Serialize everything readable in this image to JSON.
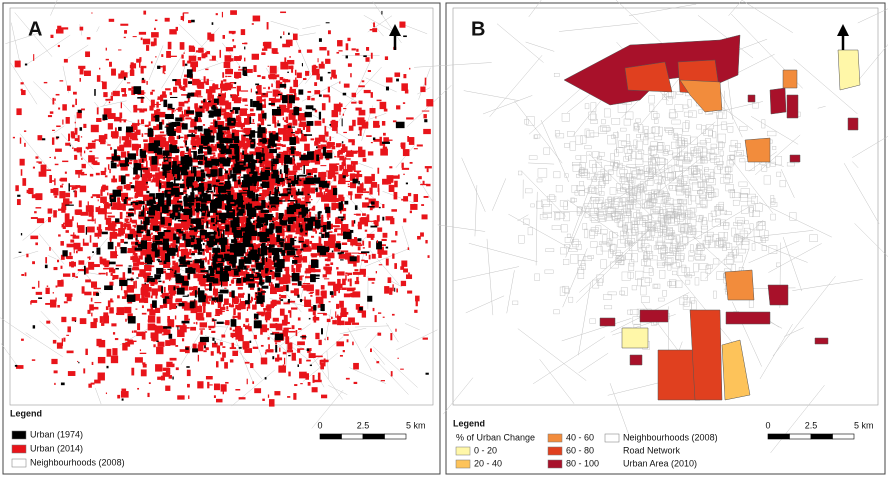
{
  "panels": [
    {
      "label": "A",
      "legend": {
        "title": "Legend",
        "items": [
          {
            "label": "Urban  (1974)",
            "color": "#000000"
          },
          {
            "label": "Urban  (2014)",
            "color": "#e8141a"
          },
          {
            "label": "Neighbourhoods (2008)",
            "color": "#ffffff"
          }
        ]
      },
      "scale": [
        "0",
        "2.5",
        "5 km"
      ]
    },
    {
      "label": "B",
      "legend": {
        "title": "Legend",
        "subtitle": "% of Urban Change",
        "items": [
          {
            "label": "0 - 20",
            "color": "#fff7a8"
          },
          {
            "label": "20 - 40",
            "color": "#fdc35a"
          },
          {
            "label": "40 - 60",
            "color": "#f28c3c"
          },
          {
            "label": "60 - 80",
            "color": "#e0401f"
          },
          {
            "label": "80 - 100",
            "color": "#a8112a"
          },
          {
            "label": "Neighbourhoods (2008)",
            "color": "#ffffff"
          },
          {
            "label": "Road Network"
          },
          {
            "label": "Urban Area (2010)"
          }
        ]
      },
      "scale": [
        "0",
        "2.5",
        "5 km"
      ]
    }
  ]
}
